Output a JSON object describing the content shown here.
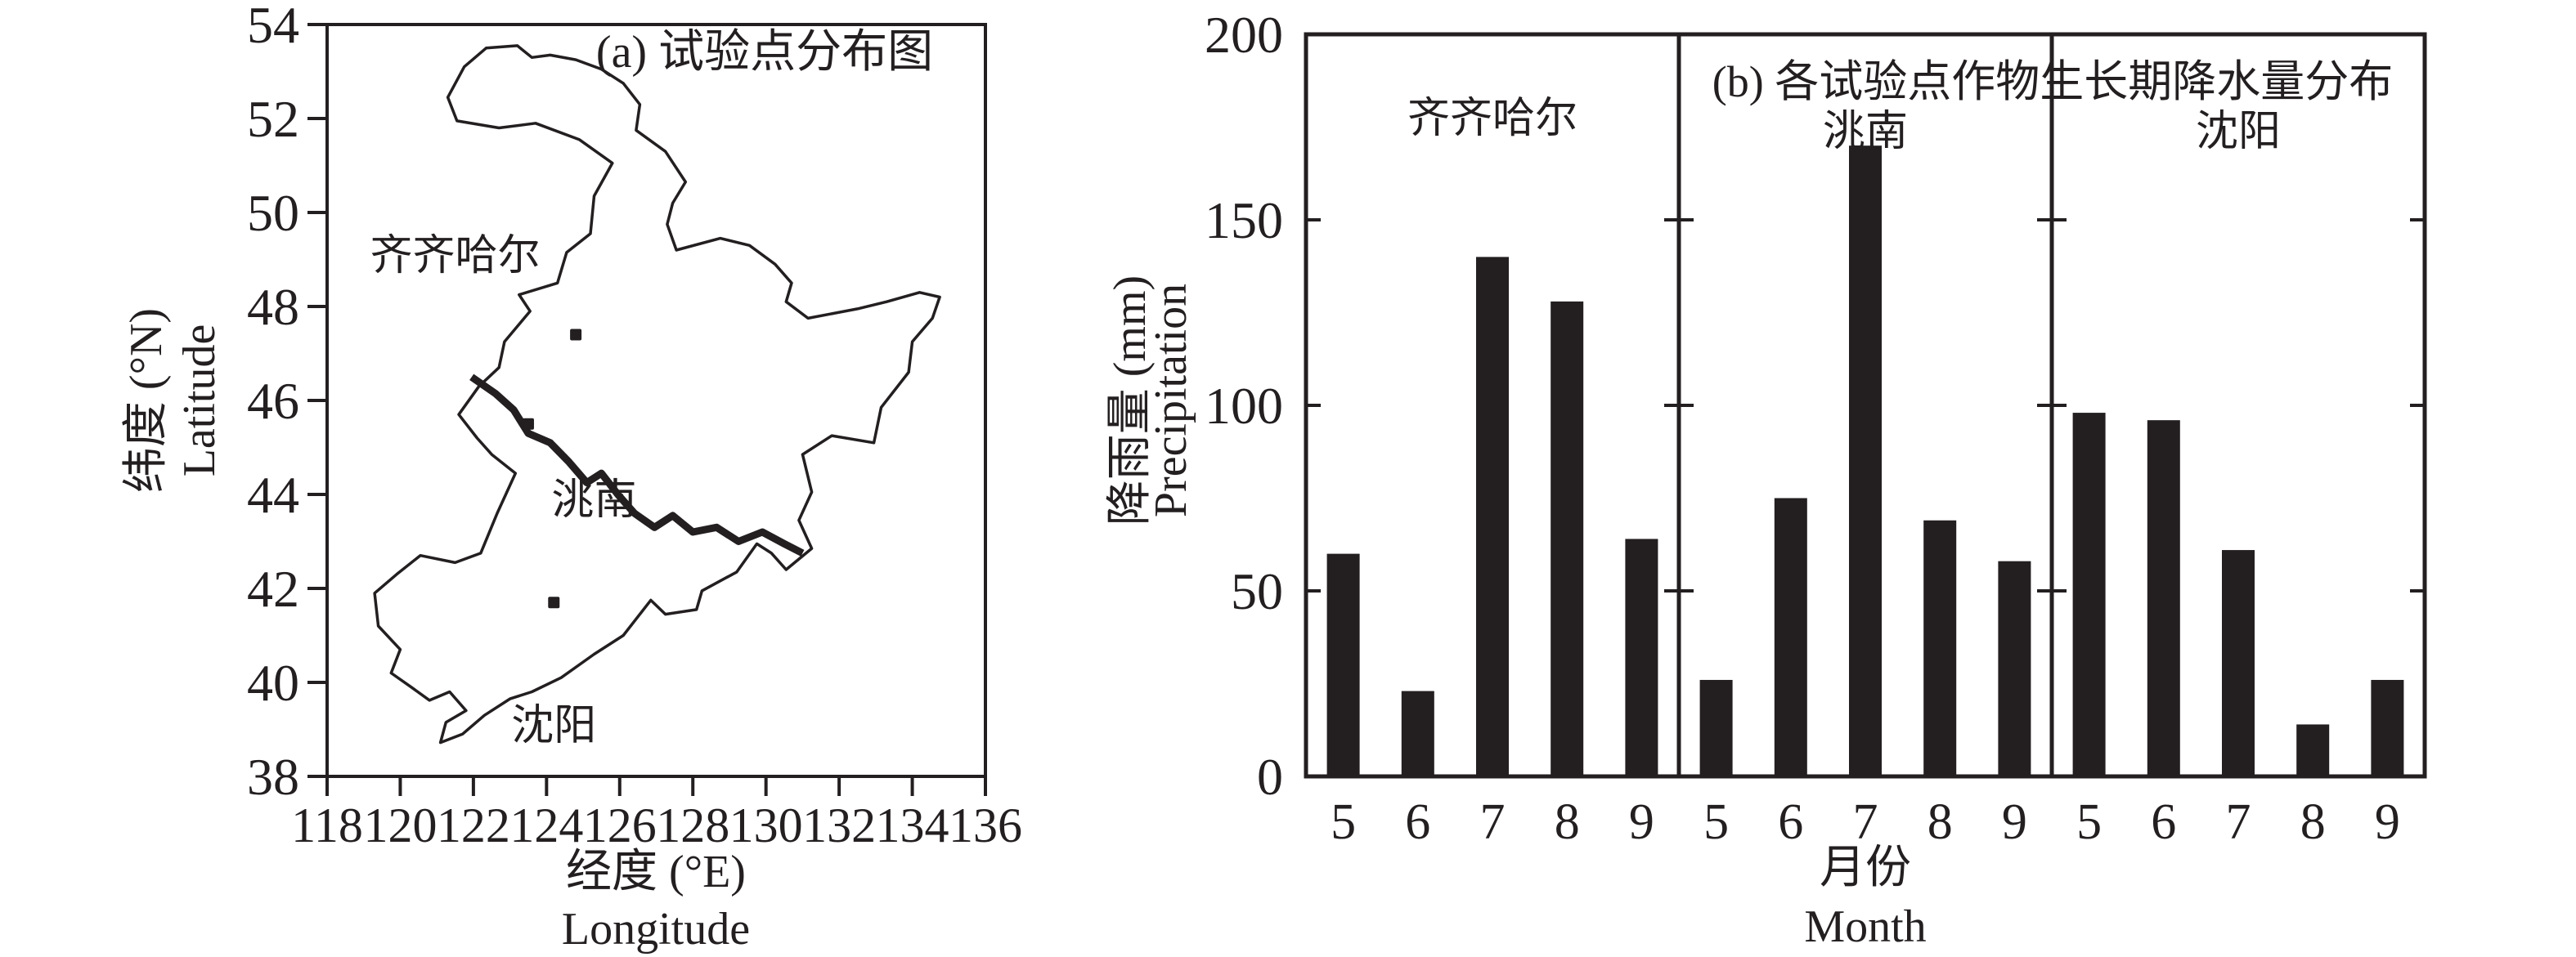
{
  "figure": {
    "panel_a": {
      "title": "(a) 试验点分布图",
      "x_axis": {
        "label_zh": "经度 (°E)",
        "label_en": "Longitude",
        "ticks": [
          118,
          120,
          122,
          124,
          126,
          128,
          130,
          132,
          134,
          136
        ],
        "range": [
          118,
          136
        ]
      },
      "y_axis": {
        "label_zh": "纬度 (°N)",
        "label_en": "Latitude",
        "ticks": [
          54,
          52,
          50,
          48,
          46,
          44,
          42,
          40,
          38
        ],
        "range": [
          38,
          54
        ]
      },
      "sites": [
        {
          "name": "齐齐哈尔",
          "lon": 124.8,
          "lat": 47.4,
          "label_lon": 121.5,
          "label_lat": 49.1
        },
        {
          "name": "洮南",
          "lon": 123.5,
          "lat": 45.5,
          "label_lon": 125.3,
          "label_lat": 43.9
        },
        {
          "name": "沈阳",
          "lon": 124.2,
          "lat": 41.7,
          "label_lon": 124.2,
          "label_lat": 39.1
        }
      ],
      "outline": [
        [
          121.55,
          51.95
        ],
        [
          121.3,
          52.45
        ],
        [
          121.75,
          53.1
        ],
        [
          122.35,
          53.5
        ],
        [
          123.2,
          53.55
        ],
        [
          123.6,
          53.3
        ],
        [
          124.1,
          53.35
        ],
        [
          124.8,
          53.25
        ],
        [
          125.5,
          53.05
        ],
        [
          126.1,
          52.75
        ],
        [
          126.55,
          52.3
        ],
        [
          126.45,
          51.75
        ],
        [
          127.25,
          51.3
        ],
        [
          127.8,
          50.65
        ],
        [
          127.45,
          50.2
        ],
        [
          127.3,
          49.75
        ],
        [
          127.55,
          49.2
        ],
        [
          128.75,
          49.45
        ],
        [
          129.55,
          49.3
        ],
        [
          130.25,
          48.9
        ],
        [
          130.7,
          48.5
        ],
        [
          130.55,
          48.1
        ],
        [
          131.15,
          47.75
        ],
        [
          132.5,
          47.95
        ],
        [
          133.3,
          48.1
        ],
        [
          134.2,
          48.3
        ],
        [
          134.75,
          48.2
        ],
        [
          134.55,
          47.75
        ],
        [
          134.0,
          47.25
        ],
        [
          133.9,
          46.6
        ],
        [
          133.15,
          45.85
        ],
        [
          132.95,
          45.1
        ],
        [
          131.8,
          45.25
        ],
        [
          131.0,
          44.85
        ],
        [
          131.25,
          44.05
        ],
        [
          130.9,
          43.45
        ],
        [
          131.25,
          42.85
        ],
        [
          130.55,
          42.4
        ],
        [
          130.15,
          42.75
        ],
        [
          129.75,
          42.95
        ],
        [
          129.2,
          42.35
        ],
        [
          128.25,
          41.95
        ],
        [
          128.1,
          41.55
        ],
        [
          127.25,
          41.45
        ],
        [
          126.85,
          41.75
        ],
        [
          126.1,
          41.0
        ],
        [
          125.3,
          40.6
        ],
        [
          124.4,
          40.1
        ],
        [
          123.6,
          39.8
        ],
        [
          123.0,
          39.65
        ],
        [
          122.3,
          39.3
        ],
        [
          121.7,
          38.9
        ],
        [
          121.1,
          38.72
        ],
        [
          121.25,
          39.15
        ],
        [
          121.8,
          39.4
        ],
        [
          121.35,
          39.8
        ],
        [
          120.8,
          39.62
        ],
        [
          120.3,
          39.9
        ],
        [
          119.75,
          40.2
        ],
        [
          120.0,
          40.7
        ],
        [
          119.4,
          41.2
        ],
        [
          119.3,
          41.9
        ],
        [
          119.9,
          42.3
        ],
        [
          120.55,
          42.7
        ],
        [
          121.5,
          42.55
        ],
        [
          122.2,
          42.75
        ],
        [
          122.65,
          43.6
        ],
        [
          123.15,
          44.45
        ],
        [
          122.5,
          44.85
        ],
        [
          122.1,
          45.2
        ],
        [
          121.6,
          45.7
        ],
        [
          122.15,
          46.3
        ],
        [
          122.7,
          46.7
        ],
        [
          122.85,
          47.25
        ],
        [
          123.55,
          47.9
        ],
        [
          123.25,
          48.25
        ],
        [
          124.3,
          48.5
        ],
        [
          124.55,
          49.15
        ],
        [
          125.2,
          49.55
        ],
        [
          125.3,
          50.35
        ],
        [
          125.8,
          51.05
        ],
        [
          124.9,
          51.55
        ],
        [
          123.7,
          51.9
        ],
        [
          122.7,
          51.8
        ]
      ],
      "inner_boundary": [
        [
          121.95,
          46.5
        ],
        [
          122.6,
          46.15
        ],
        [
          123.1,
          45.8
        ],
        [
          123.5,
          45.3
        ],
        [
          124.1,
          45.1
        ],
        [
          124.6,
          44.7
        ],
        [
          125.1,
          44.25
        ],
        [
          125.5,
          44.45
        ],
        [
          125.95,
          44.0
        ],
        [
          126.4,
          43.6
        ],
        [
          126.95,
          43.3
        ],
        [
          127.45,
          43.55
        ],
        [
          128.0,
          43.2
        ],
        [
          128.65,
          43.3
        ],
        [
          129.25,
          43.0
        ],
        [
          129.9,
          43.2
        ],
        [
          130.5,
          42.95
        ],
        [
          131.0,
          42.75
        ]
      ]
    },
    "panel_b": {
      "title": "(b) 各试验点作物生长期降水量分布",
      "y_axis": {
        "label_zh": "降雨量 (mm)",
        "label_en": "Precipitation",
        "ticks": [
          0,
          50,
          100,
          150,
          200
        ],
        "range": [
          0,
          200
        ]
      },
      "x_axis": {
        "label_zh": "月份",
        "label_en": "Month"
      },
      "months": [
        5,
        6,
        7,
        8,
        9
      ],
      "series": [
        {
          "name": "齐齐哈尔",
          "values": [
            60,
            23,
            140,
            128,
            64
          ]
        },
        {
          "name": "洮南",
          "values": [
            26,
            75,
            170,
            69,
            58
          ]
        },
        {
          "name": "沈阳",
          "values": [
            98,
            96,
            61,
            14,
            26
          ]
        }
      ],
      "bar_color": "#231f20"
    }
  },
  "chart_data": [
    {
      "type": "scatter",
      "title": "(a) 试验点分布图",
      "xlabel": "经度 (°E) Longitude",
      "ylabel": "纬度 (°N) Latitude",
      "xlim": [
        118,
        136
      ],
      "ylim": [
        38,
        54
      ],
      "points": [
        {
          "label": "齐齐哈尔",
          "x": 124.8,
          "y": 47.4
        },
        {
          "label": "洮南",
          "x": 123.5,
          "y": 45.5
        },
        {
          "label": "沈阳",
          "x": 124.2,
          "y": 41.7
        }
      ]
    },
    {
      "type": "bar",
      "title": "(b) 各试验点作物生长期降水量分布",
      "categories": [
        5,
        6,
        7,
        8,
        9
      ],
      "series": [
        {
          "name": "齐齐哈尔",
          "values": [
            60,
            23,
            140,
            128,
            64
          ]
        },
        {
          "name": "洮南",
          "values": [
            26,
            75,
            170,
            69,
            58
          ]
        },
        {
          "name": "沈阳",
          "values": [
            98,
            96,
            61,
            14,
            26
          ]
        }
      ],
      "xlabel": "月份 Month",
      "ylabel": "降雨量 (mm) Precipitation",
      "ylim": [
        0,
        200
      ],
      "grid": false,
      "legend": "none"
    }
  ]
}
